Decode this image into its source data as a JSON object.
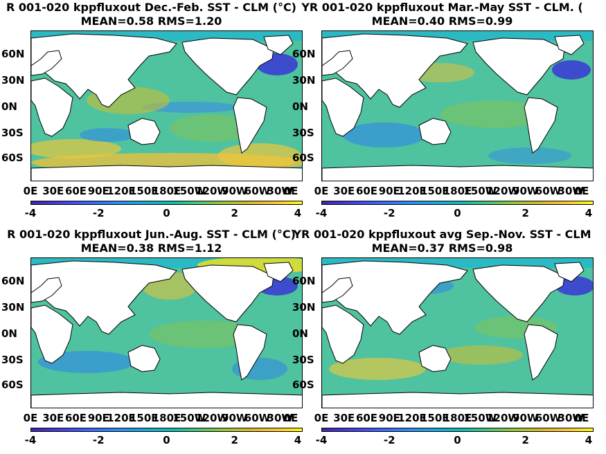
{
  "panels": [
    {
      "title_line1": "R 001-020 kppfluxout  Dec.-Feb. SST - CLM (°C)",
      "title_line2": "MEAN=0.58   RMS=1.20",
      "mean": 0.58,
      "rms": 1.2,
      "season": "Dec.-Feb."
    },
    {
      "title_line1": "YR 001-020 kppfluxout Mar.-May SST - CLM. (",
      "title_line2": "MEAN=0.40   RMS=0.99",
      "mean": 0.4,
      "rms": 0.99,
      "season": "Mar.-May"
    },
    {
      "title_line1": "R 001-020 kppfluxout Jun.-Aug. SST - CLM (°C)",
      "title_line2": "MEAN=0.38   RMS=1.12",
      "mean": 0.38,
      "rms": 1.12,
      "season": "Jun.-Aug."
    },
    {
      "title_line1": "YR 001-020 kppfluxout avg Sep.-Nov. SST - CLM",
      "title_line2": "MEAN=0.37   RMS=0.98",
      "mean": 0.37,
      "rms": 0.98,
      "season": "Sep.-Nov."
    }
  ],
  "lat_ticks": [
    "60N",
    "30N",
    "0N",
    "30S",
    "60S"
  ],
  "lon_ticks": [
    "0E",
    "30E",
    "60E",
    "90E",
    "120E",
    "150E",
    "180E",
    "150W",
    "120W",
    "90W",
    "60W",
    "30W",
    "0E"
  ],
  "colorbar": {
    "ticks": [
      "-4",
      "-2",
      "0",
      "2",
      "4"
    ],
    "min": -4,
    "max": 4,
    "colormap": "parula"
  },
  "colors": {
    "land": "#ffffff",
    "ocean_base": "#4fc2a0",
    "warm": "#f2c23a",
    "cool": "#2f86e8",
    "strong_cool": "#3a3fd0",
    "polar": "#22b8cc"
  }
}
